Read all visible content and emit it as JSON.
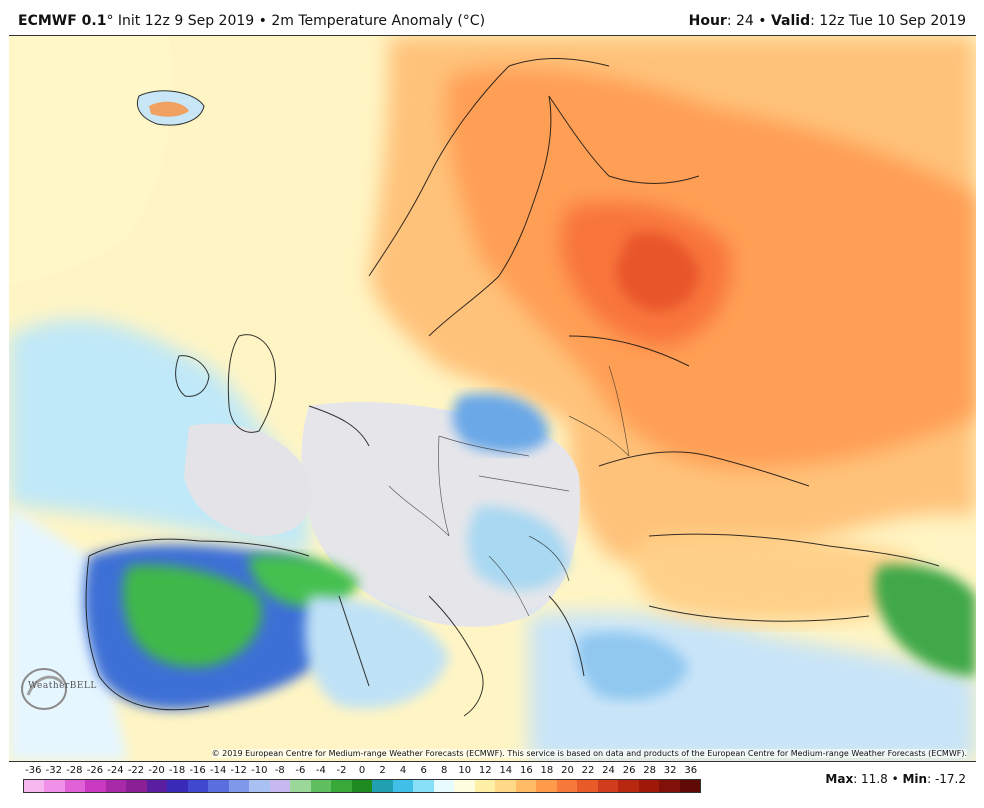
{
  "header": {
    "model": "ECMWF 0.1",
    "degree": "°",
    "init_text": " Init 12z 9 Sep 2019",
    "sep": " • ",
    "field": "2m Temperature Anomaly (°C)",
    "hour_label": "Hour",
    "hour_value": ": 24",
    "valid_label": "Valid",
    "valid_value": ": 12z Tue 10 Sep 2019"
  },
  "copyright": "© 2019 European Centre for Medium-range Weather Forecasts (ECMWF). This service is based on data and products of the European Centre for Medium-range Weather Forecasts (ECMWF).",
  "logo": "WeatherBELL",
  "scale": {
    "labels": [
      "-36",
      "-32",
      "-28",
      "-26",
      "-24",
      "-22",
      "-20",
      "-18",
      "-16",
      "-14",
      "-12",
      "-10",
      "-8",
      "-6",
      "-4",
      "-2",
      "0",
      "2",
      "4",
      "6",
      "8",
      "10",
      "12",
      "14",
      "16",
      "18",
      "20",
      "22",
      "24",
      "26",
      "28",
      "32",
      "36"
    ],
    "colors": [
      "#f7b8f0",
      "#f090e8",
      "#e060d8",
      "#c838c0",
      "#a82aa8",
      "#8a1f96",
      "#5a1fa0",
      "#3a2ab8",
      "#4048d0",
      "#5b6ee0",
      "#7f98ea",
      "#a8c0f2",
      "#c8b8f0",
      "#9ad89a",
      "#60c060",
      "#38a838",
      "#1f8a1f",
      "#20a0b0",
      "#40c0e8",
      "#88e0f8",
      "#e8fbff",
      "#fffde0",
      "#fff0a8",
      "#ffd888",
      "#ffbb66",
      "#ff9a4a",
      "#f87a3a",
      "#e85a28",
      "#d03c1c",
      "#b82810",
      "#a01808",
      "#801008",
      "#600a06"
    ]
  },
  "stats": {
    "max_label": "Max",
    "max_value": ": 11.8",
    "sep": " • ",
    "min_label": "Min",
    "min_value": ": -17.2"
  }
}
